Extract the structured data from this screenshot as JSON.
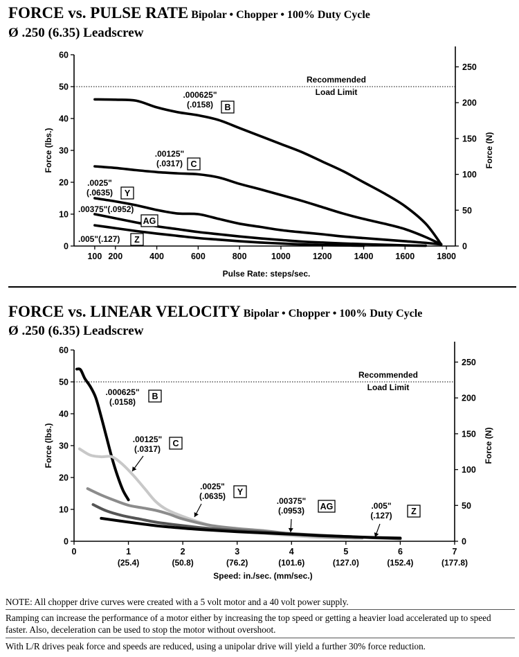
{
  "chart_data": [
    {
      "type": "line",
      "title": "FORCE vs. PULSE RATE",
      "subtitle": "Bipolar • Chopper • 100% Duty Cycle",
      "leadscrew": "Ø .250 (6.35) Leadscrew",
      "xlabel": "Pulse Rate:  steps/sec.",
      "ylabel": "Force (lbs.)",
      "ylabel_right": "Force (N)",
      "xlim": [
        0,
        1900
      ],
      "ylim": [
        0,
        60
      ],
      "xticks": [
        100,
        200,
        400,
        600,
        800,
        1000,
        1200,
        1400,
        1600,
        1800
      ],
      "yticks": [
        0,
        10,
        20,
        30,
        40,
        50,
        60
      ],
      "yticks_right": [
        0,
        50,
        100,
        150,
        200,
        250
      ],
      "load_limit": 50,
      "load_limit_label": [
        "Recommended",
        "Load Limit"
      ],
      "series": [
        {
          "name": "B",
          "line1": ".000625\"",
          "line2": "(.0158)",
          "color": "#000000",
          "x": [
            100,
            200,
            300,
            400,
            500,
            600,
            700,
            800,
            900,
            1000,
            1100,
            1200,
            1300,
            1400,
            1500,
            1600,
            1700,
            1775
          ],
          "y": [
            46,
            45.9,
            45.6,
            43.5,
            42,
            41,
            39.5,
            37,
            34.5,
            32,
            29.5,
            26.5,
            23.5,
            20,
            16.5,
            12.5,
            7,
            0.5
          ]
        },
        {
          "name": "C",
          "line1": ".00125\"",
          "line2": "(.0317)",
          "color": "#000000",
          "x": [
            100,
            200,
            300,
            400,
            500,
            600,
            700,
            800,
            900,
            1000,
            1100,
            1200,
            1300,
            1400,
            1500,
            1600,
            1700,
            1775
          ],
          "y": [
            25,
            24.5,
            23.8,
            23.2,
            22.8,
            22.5,
            21.5,
            19.5,
            17.8,
            16,
            14.2,
            12.2,
            10.2,
            8.5,
            7,
            5.3,
            2.8,
            0.5
          ]
        },
        {
          "name": "Y",
          "line1": ".0025\"",
          "line2": "(.0635)",
          "color": "#000000",
          "x": [
            100,
            200,
            300,
            400,
            500,
            600,
            700,
            800,
            900,
            1000,
            1100,
            1200,
            1300,
            1400,
            1500,
            1600,
            1700,
            1775
          ],
          "y": [
            15,
            14,
            12.8,
            11.3,
            10.2,
            10,
            8.5,
            7,
            6,
            5,
            4.3,
            3.7,
            3,
            2.5,
            2,
            1.5,
            1,
            0.5
          ]
        },
        {
          "name": "AG",
          "line1": ".00375\"",
          "line2": "(.0952)",
          "color": "#000000",
          "x": [
            100,
            200,
            300,
            400,
            500,
            600,
            700,
            800,
            900,
            1000,
            1100,
            1200,
            1300,
            1400,
            1500,
            1600,
            1700
          ],
          "y": [
            10,
            8.7,
            7.4,
            6.2,
            5.3,
            4.4,
            3.7,
            3,
            2.4,
            1.9,
            1.4,
            1.1,
            0.8,
            0.6,
            0.4,
            0.2,
            0.1
          ]
        },
        {
          "name": "Z",
          "line1": ".005\"",
          "line2": "(.127)",
          "color": "#000000",
          "x": [
            100,
            200,
            300,
            400,
            500,
            600,
            700,
            800,
            900,
            1000,
            1100,
            1200,
            1300,
            1400
          ],
          "y": [
            6.5,
            5.6,
            4.7,
            3.9,
            3.2,
            2.5,
            2,
            1.5,
            1.1,
            0.8,
            0.5,
            0.3,
            0.2,
            0.1
          ]
        }
      ]
    },
    {
      "type": "line",
      "title": "FORCE vs. LINEAR VELOCITY",
      "subtitle": "Bipolar • Chopper • 100% Duty Cycle",
      "leadscrew": "Ø .250 (6.35) Leadscrew",
      "xlabel": "Speed:  in./sec.  (mm/sec.)",
      "ylabel": "Force (lbs.)",
      "ylabel_right": "Force (N)",
      "xlim": [
        0,
        7
      ],
      "ylim": [
        0,
        60
      ],
      "xticks": [
        0,
        1,
        2,
        3,
        4,
        5,
        6,
        7
      ],
      "xticks_mm": [
        "(25.4)",
        "(50.8)",
        "(76.2)",
        "(101.6)",
        "(127.0)",
        "(152.4)",
        "(177.8)"
      ],
      "yticks": [
        0,
        10,
        20,
        30,
        40,
        50,
        60
      ],
      "yticks_right": [
        0,
        50,
        100,
        150,
        200,
        250
      ],
      "load_limit": 50,
      "load_limit_label": [
        "Recommended",
        "Load Limit"
      ],
      "series": [
        {
          "name": "B",
          "line1": ".000625\"",
          "line2": "(.0158)",
          "color": "#000000",
          "x": [
            0.05,
            0.12,
            0.2,
            0.3,
            0.4,
            0.5,
            0.6,
            0.7,
            0.8,
            0.9,
            1.0
          ],
          "y": [
            54,
            53.8,
            51,
            48.5,
            45,
            39,
            32.5,
            26,
            20.5,
            16,
            13
          ]
        },
        {
          "name": "C",
          "line1": ".00125\"",
          "line2": "(.0317)",
          "color": "#c8c8c8",
          "x": [
            0.1,
            0.3,
            0.5,
            0.7,
            0.9,
            1.1,
            1.3,
            1.5,
            1.7,
            2.0,
            2.5,
            3.0,
            3.5,
            4.0,
            4.5,
            5.0
          ],
          "y": [
            29,
            27,
            26.5,
            26.5,
            24,
            20.5,
            16.5,
            12.5,
            10,
            7.8,
            5,
            3.5,
            2.5,
            1.8,
            1.2,
            1
          ]
        },
        {
          "name": "Y",
          "line1": ".0025\"",
          "line2": "(.0635)",
          "color": "#8c8c8c",
          "x": [
            0.25,
            0.5,
            0.75,
            1.0,
            1.25,
            1.5,
            1.75,
            2.0,
            2.5,
            3.0,
            3.5,
            4.0,
            4.5,
            5.0,
            5.3
          ],
          "y": [
            16.5,
            14.5,
            12.8,
            11.3,
            10.5,
            9.7,
            8.5,
            7,
            5,
            4,
            3.3,
            2.3,
            1.6,
            1.1,
            1
          ]
        },
        {
          "name": "AG",
          "line1": ".00375\"",
          "line2": "(.0953)",
          "color": "#555555",
          "x": [
            0.35,
            0.6,
            0.9,
            1.2,
            1.5,
            1.8,
            2.1,
            2.5,
            3.0,
            3.5,
            4.0,
            4.5,
            5.0,
            5.5,
            6.0
          ],
          "y": [
            11.5,
            9.5,
            8,
            7,
            6,
            5.3,
            4.7,
            4,
            3.4,
            2.9,
            2.4,
            1.9,
            1.5,
            1.1,
            0.8
          ]
        },
        {
          "name": "Z",
          "line1": ".005\"",
          "line2": "(.127)",
          "color": "#000000",
          "x": [
            0.5,
            1.0,
            1.5,
            2.0,
            2.5,
            3.0,
            3.5,
            4.0,
            4.5,
            5.0,
            5.5,
            6.0
          ],
          "y": [
            7.2,
            6,
            4.9,
            4.1,
            3.5,
            3,
            2.6,
            2.2,
            1.8,
            1.5,
            1.2,
            1
          ]
        }
      ]
    }
  ],
  "notes": [
    "NOTE: All chopper drive curves were created with a 5 volt motor and a 40 volt power supply.",
    "Ramping can increase the performance of a motor either by increasing the top speed or getting a heavier load accelerated up to speed faster.  Also, deceleration can be used to stop the motor without overshoot.",
    "With L/R drives peak force and speeds are reduced, using a unipolar drive will yield a further 30% force reduction."
  ]
}
